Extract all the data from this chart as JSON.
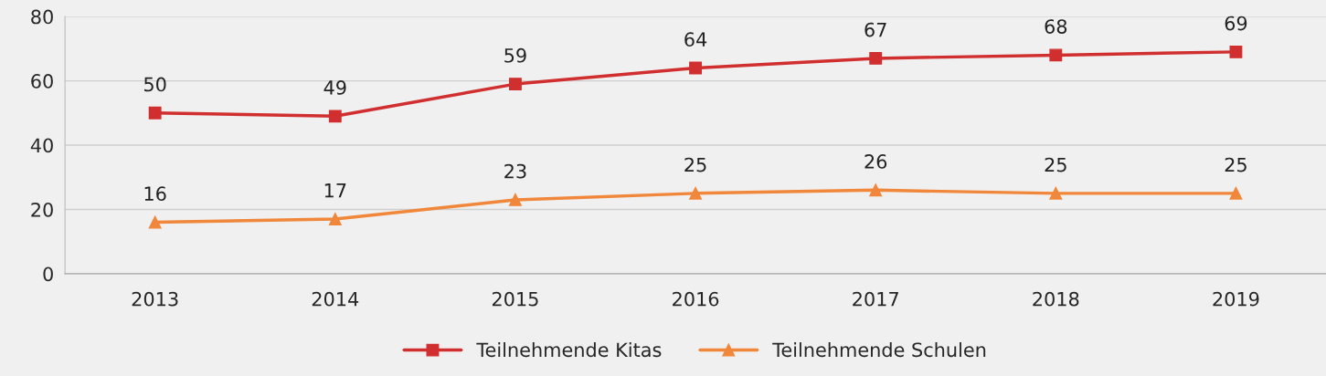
{
  "chart_data": {
    "type": "line",
    "categories": [
      "2013",
      "2014",
      "2015",
      "2016",
      "2017",
      "2018",
      "2019"
    ],
    "series": [
      {
        "name": "Teilnehmende Kitas",
        "color": "#d12f2f",
        "marker": "square",
        "values": [
          50,
          49,
          59,
          64,
          67,
          68,
          69
        ]
      },
      {
        "name": "Teilnehmende Schulen",
        "color": "#f0873a",
        "marker": "triangle",
        "values": [
          16,
          17,
          23,
          25,
          26,
          25,
          25
        ]
      }
    ],
    "ylim": [
      0,
      80
    ],
    "yticks": [
      0,
      20,
      40,
      60,
      80
    ],
    "grid": "y",
    "legend": "bottom",
    "data_labels": true,
    "line_style": "solid"
  }
}
